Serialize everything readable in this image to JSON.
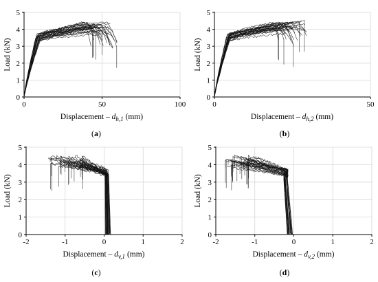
{
  "chart_data": [
    {
      "panel_label": "(a)",
      "type": "line",
      "xlabel_prefix": "Displacement – ",
      "xlabel_var": "d",
      "xlabel_sub": "h,1",
      "xlabel_unit": " (mm)",
      "ylabel": "Load (kN)",
      "xlim": [
        0,
        100
      ],
      "ylim": [
        0,
        5
      ],
      "xticks": [
        0,
        50,
        100
      ],
      "yticks": [
        0,
        1,
        2,
        3,
        4,
        5
      ],
      "grid": true,
      "curve_count": 28,
      "knee_x": 9,
      "peak_load": 4.5,
      "end_x_range": [
        37,
        60
      ],
      "end_load_range": [
        2.0,
        4.5
      ]
    },
    {
      "panel_label": "(b)",
      "type": "line",
      "xlabel_prefix": "Displacement – ",
      "xlabel_var": "d",
      "xlabel_sub": "h,2",
      "xlabel_unit": " (mm)",
      "ylabel": "Load (kN)",
      "xlim": [
        0,
        50
      ],
      "ylim": [
        0,
        5
      ],
      "xticks": [
        0,
        50
      ],
      "yticks": [
        0,
        1,
        2,
        3,
        4,
        5
      ],
      "grid": true,
      "curve_count": 28,
      "knee_x": 4.5,
      "peak_load": 4.5,
      "end_x_range": [
        18.5,
        30
      ],
      "end_load_range": [
        2.0,
        4.5
      ]
    },
    {
      "panel_label": "(c)",
      "type": "line",
      "xlabel_prefix": "Displacement – ",
      "xlabel_var": "d",
      "xlabel_sub": "v,1",
      "xlabel_unit": " (mm)",
      "ylabel": "Load (kN)",
      "xlim": [
        -2,
        2
      ],
      "ylim": [
        0,
        5
      ],
      "xticks": [
        -2,
        -1,
        0,
        1,
        2
      ],
      "yticks": [
        0,
        1,
        2,
        3,
        4,
        5
      ],
      "grid": true,
      "curve_count": 28,
      "knee_x": 0.1,
      "peak_load": 4.5,
      "end_x_range": [
        -1.6,
        -0.5
      ],
      "end_load_range": [
        1.8,
        4.5
      ]
    },
    {
      "panel_label": "(d)",
      "type": "line",
      "xlabel_prefix": "Displacement – ",
      "xlabel_var": "d",
      "xlabel_sub": "v,2",
      "xlabel_unit": " (mm)",
      "ylabel": "Load (kN)",
      "xlim": [
        -2,
        2
      ],
      "ylim": [
        0,
        5
      ],
      "xticks": [
        -2,
        -1,
        0,
        1,
        2
      ],
      "yticks": [
        0,
        1,
        2,
        3,
        4,
        5
      ],
      "grid": true,
      "curve_count": 28,
      "knee_x": -0.1,
      "peak_load": 4.5,
      "end_x_range": [
        -1.9,
        -1.0
      ],
      "end_load_range": [
        1.8,
        4.5
      ]
    }
  ]
}
